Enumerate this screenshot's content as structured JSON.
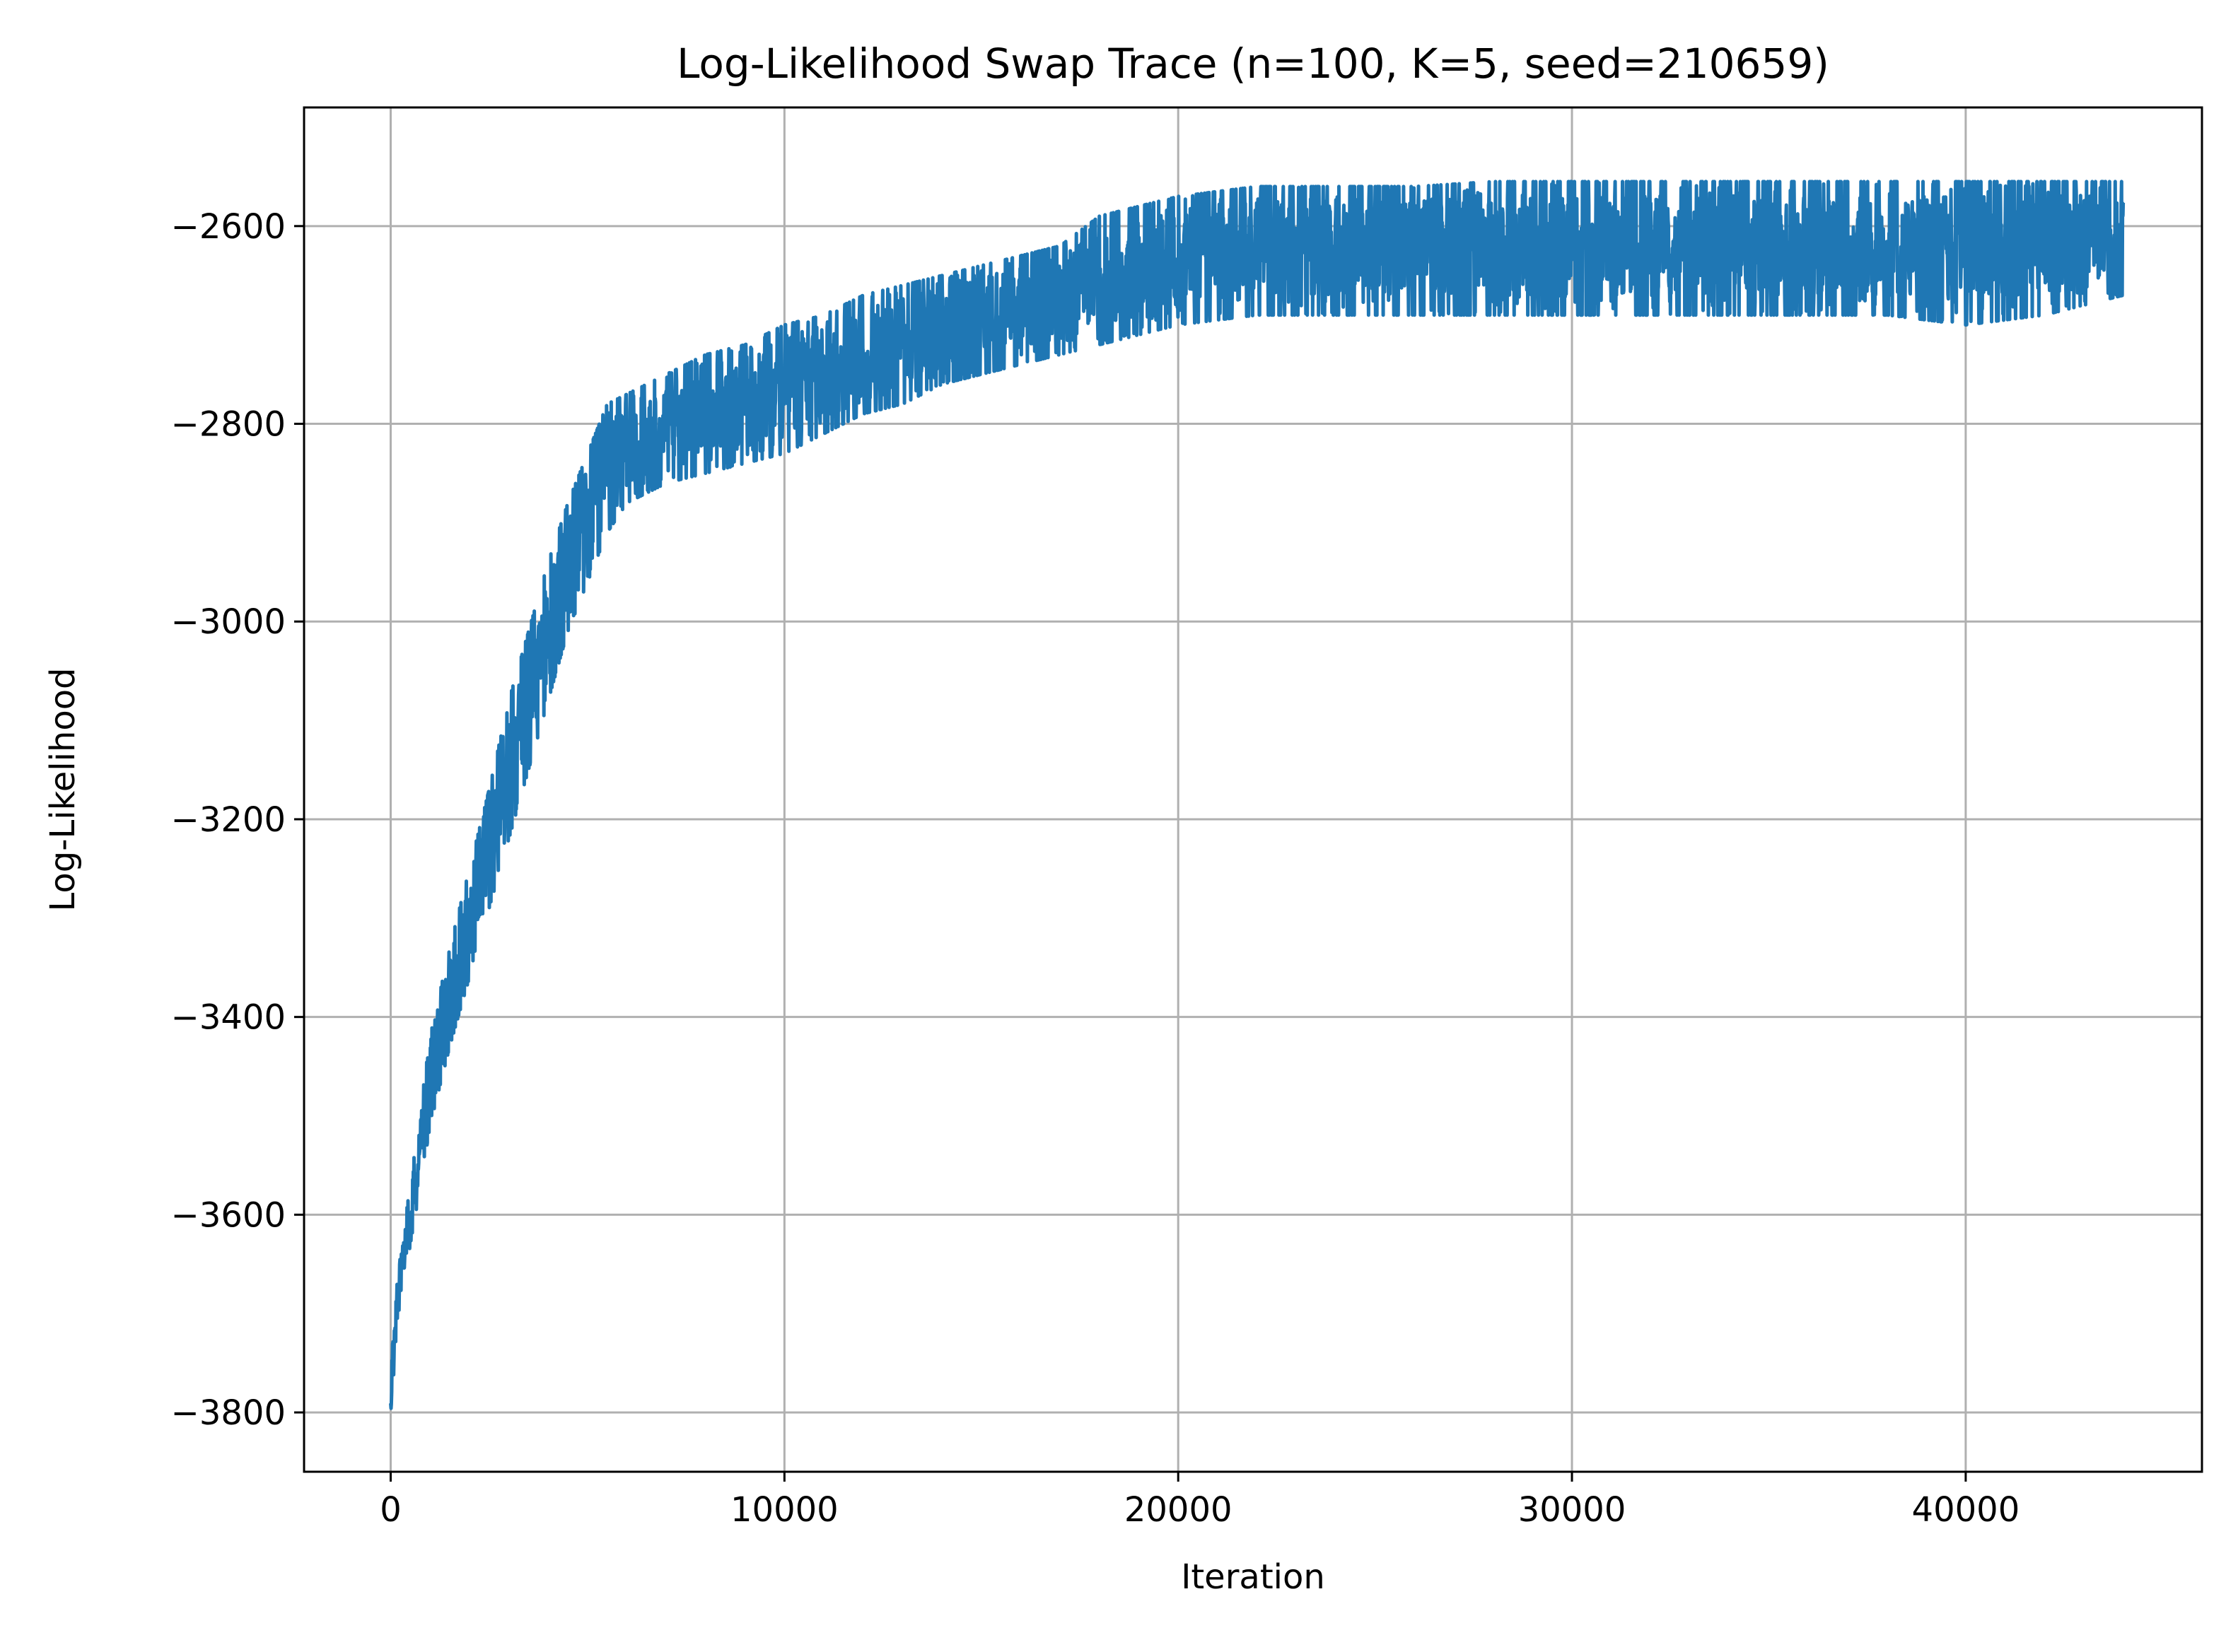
{
  "chart_data": {
    "type": "line",
    "title": "Log-Likelihood Swap Trace (n=100, K=5, seed=210659)",
    "xlabel": "Iteration",
    "ylabel": "Log-Likelihood",
    "xlim": [
      -2200,
      46000
    ],
    "ylim": [
      -3860,
      -2480
    ],
    "x_ticks": [
      0,
      10000,
      20000,
      30000,
      40000
    ],
    "x_tick_labels": [
      "0",
      "10000",
      "20000",
      "30000",
      "40000"
    ],
    "y_ticks": [
      -3800,
      -3600,
      -3400,
      -3200,
      -3000,
      -2800,
      -2600
    ],
    "y_tick_labels": [
      "−3800",
      "−3600",
      "−3400",
      "−3200",
      "−3000",
      "−2800",
      "−2600"
    ],
    "grid": true,
    "line_color": "#1f77b4",
    "series": [
      {
        "x": [
          0,
          200,
          500,
          800,
          1000,
          1500,
          2000,
          2500,
          3000,
          3500,
          4000,
          4500,
          5000,
          5500,
          6000,
          7000,
          8000,
          9000,
          10000,
          11000,
          12000,
          13000,
          14000,
          15000,
          16000,
          17000,
          18000,
          19000,
          20000,
          22000,
          24000,
          26000,
          28000,
          30000,
          32000,
          34000,
          36000,
          38000,
          40000,
          42000,
          44000
        ],
        "upper": [
          -3750,
          -3650,
          -3570,
          -3480,
          -3420,
          -3330,
          -3250,
          -3170,
          -3080,
          -3010,
          -2940,
          -2880,
          -2830,
          -2780,
          -2770,
          -2750,
          -2730,
          -2720,
          -2700,
          -2690,
          -2670,
          -2660,
          -2650,
          -2640,
          -2630,
          -2620,
          -2590,
          -2580,
          -2570,
          -2560,
          -2560,
          -2560,
          -2555,
          -2555,
          -2555,
          -2555,
          -2555,
          -2555,
          -2555,
          -2555,
          -2555
        ],
        "lower": [
          -3800,
          -3700,
          -3630,
          -3560,
          -3510,
          -3430,
          -3360,
          -3290,
          -3220,
          -3150,
          -3080,
          -3010,
          -2960,
          -2910,
          -2880,
          -2860,
          -2850,
          -2840,
          -2830,
          -2810,
          -2790,
          -2780,
          -2760,
          -2750,
          -2740,
          -2730,
          -2720,
          -2710,
          -2700,
          -2690,
          -2690,
          -2690,
          -2690,
          -2690,
          -2690,
          -2690,
          -2690,
          -2690,
          -2700,
          -2690,
          -2670
        ]
      }
    ]
  }
}
